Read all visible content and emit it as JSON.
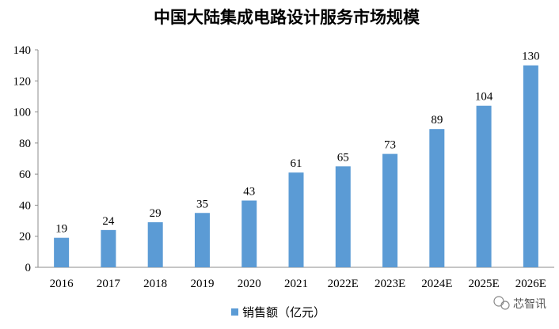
{
  "chart_data": {
    "type": "bar",
    "title": "中国大陆集成电路设计服务市场规模",
    "categories": [
      "2016",
      "2017",
      "2018",
      "2019",
      "2020",
      "2021",
      "2022E",
      "2023E",
      "2024E",
      "2025E",
      "2026E"
    ],
    "series": [
      {
        "name": "销售额（亿元）",
        "values": [
          19,
          24,
          29,
          35,
          43,
          61,
          65,
          73,
          89,
          104,
          130
        ]
      }
    ],
    "ylim": [
      0,
      140
    ],
    "yticks": [
      0,
      20,
      40,
      60,
      80,
      100,
      120,
      140
    ],
    "grid": false,
    "legend": "bottom",
    "bar_color": "#5b9bd5",
    "data_labels": true
  },
  "watermark": {
    "text": "芯智讯",
    "icon": "wechat-logo-icon"
  }
}
